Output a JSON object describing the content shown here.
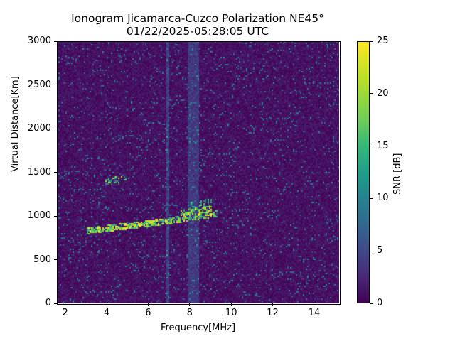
{
  "chart_data": {
    "type": "heatmap",
    "title": "Ionogram Jicamarca-Cuzco Polarization NE45°",
    "subtitle": "01/22/2025-05:28:05 UTC",
    "xlabel": "Frequency[MHz]",
    "ylabel": "Virtual Distance[Km]",
    "colorbar_label": "SNR [dB]",
    "xlim": [
      1.6,
      15.2
    ],
    "ylim": [
      0,
      3000
    ],
    "clim": [
      0,
      25
    ],
    "colormap": "viridis",
    "x_ticks": [
      2,
      4,
      6,
      8,
      10,
      12,
      14
    ],
    "y_ticks": [
      0,
      500,
      1000,
      1500,
      2000,
      2500,
      3000
    ],
    "colorbar_ticks": [
      0,
      5,
      10,
      15,
      20,
      25
    ],
    "grid": false,
    "features": [
      {
        "name": "main F-layer trace",
        "freq_range_mhz": [
          3.0,
          9.3
        ],
        "distance_km_start": 830,
        "distance_km_end": 1000,
        "snr_db": "20-25",
        "note": "rises from ~830 km at 3 MHz to ~1000 km at 8-9 MHz, spreading up to ~1200 km near 8.5 MHz"
      },
      {
        "name": "secondary trace",
        "freq_range_mhz": [
          3.9,
          4.9
        ],
        "distance_km": [
          1380,
          1450
        ],
        "snr_db": "10-20"
      },
      {
        "name": "interference band",
        "freq_range_mhz": [
          7.9,
          8.4
        ],
        "distance_km": [
          0,
          3000
        ],
        "snr_db": "3-6"
      },
      {
        "name": "interference line",
        "freq_mhz": 6.9,
        "distance_km": [
          0,
          3000
        ],
        "snr_db": "3-10"
      }
    ],
    "background_snr_db": "0-3 with sparse speckle up to ~12"
  }
}
